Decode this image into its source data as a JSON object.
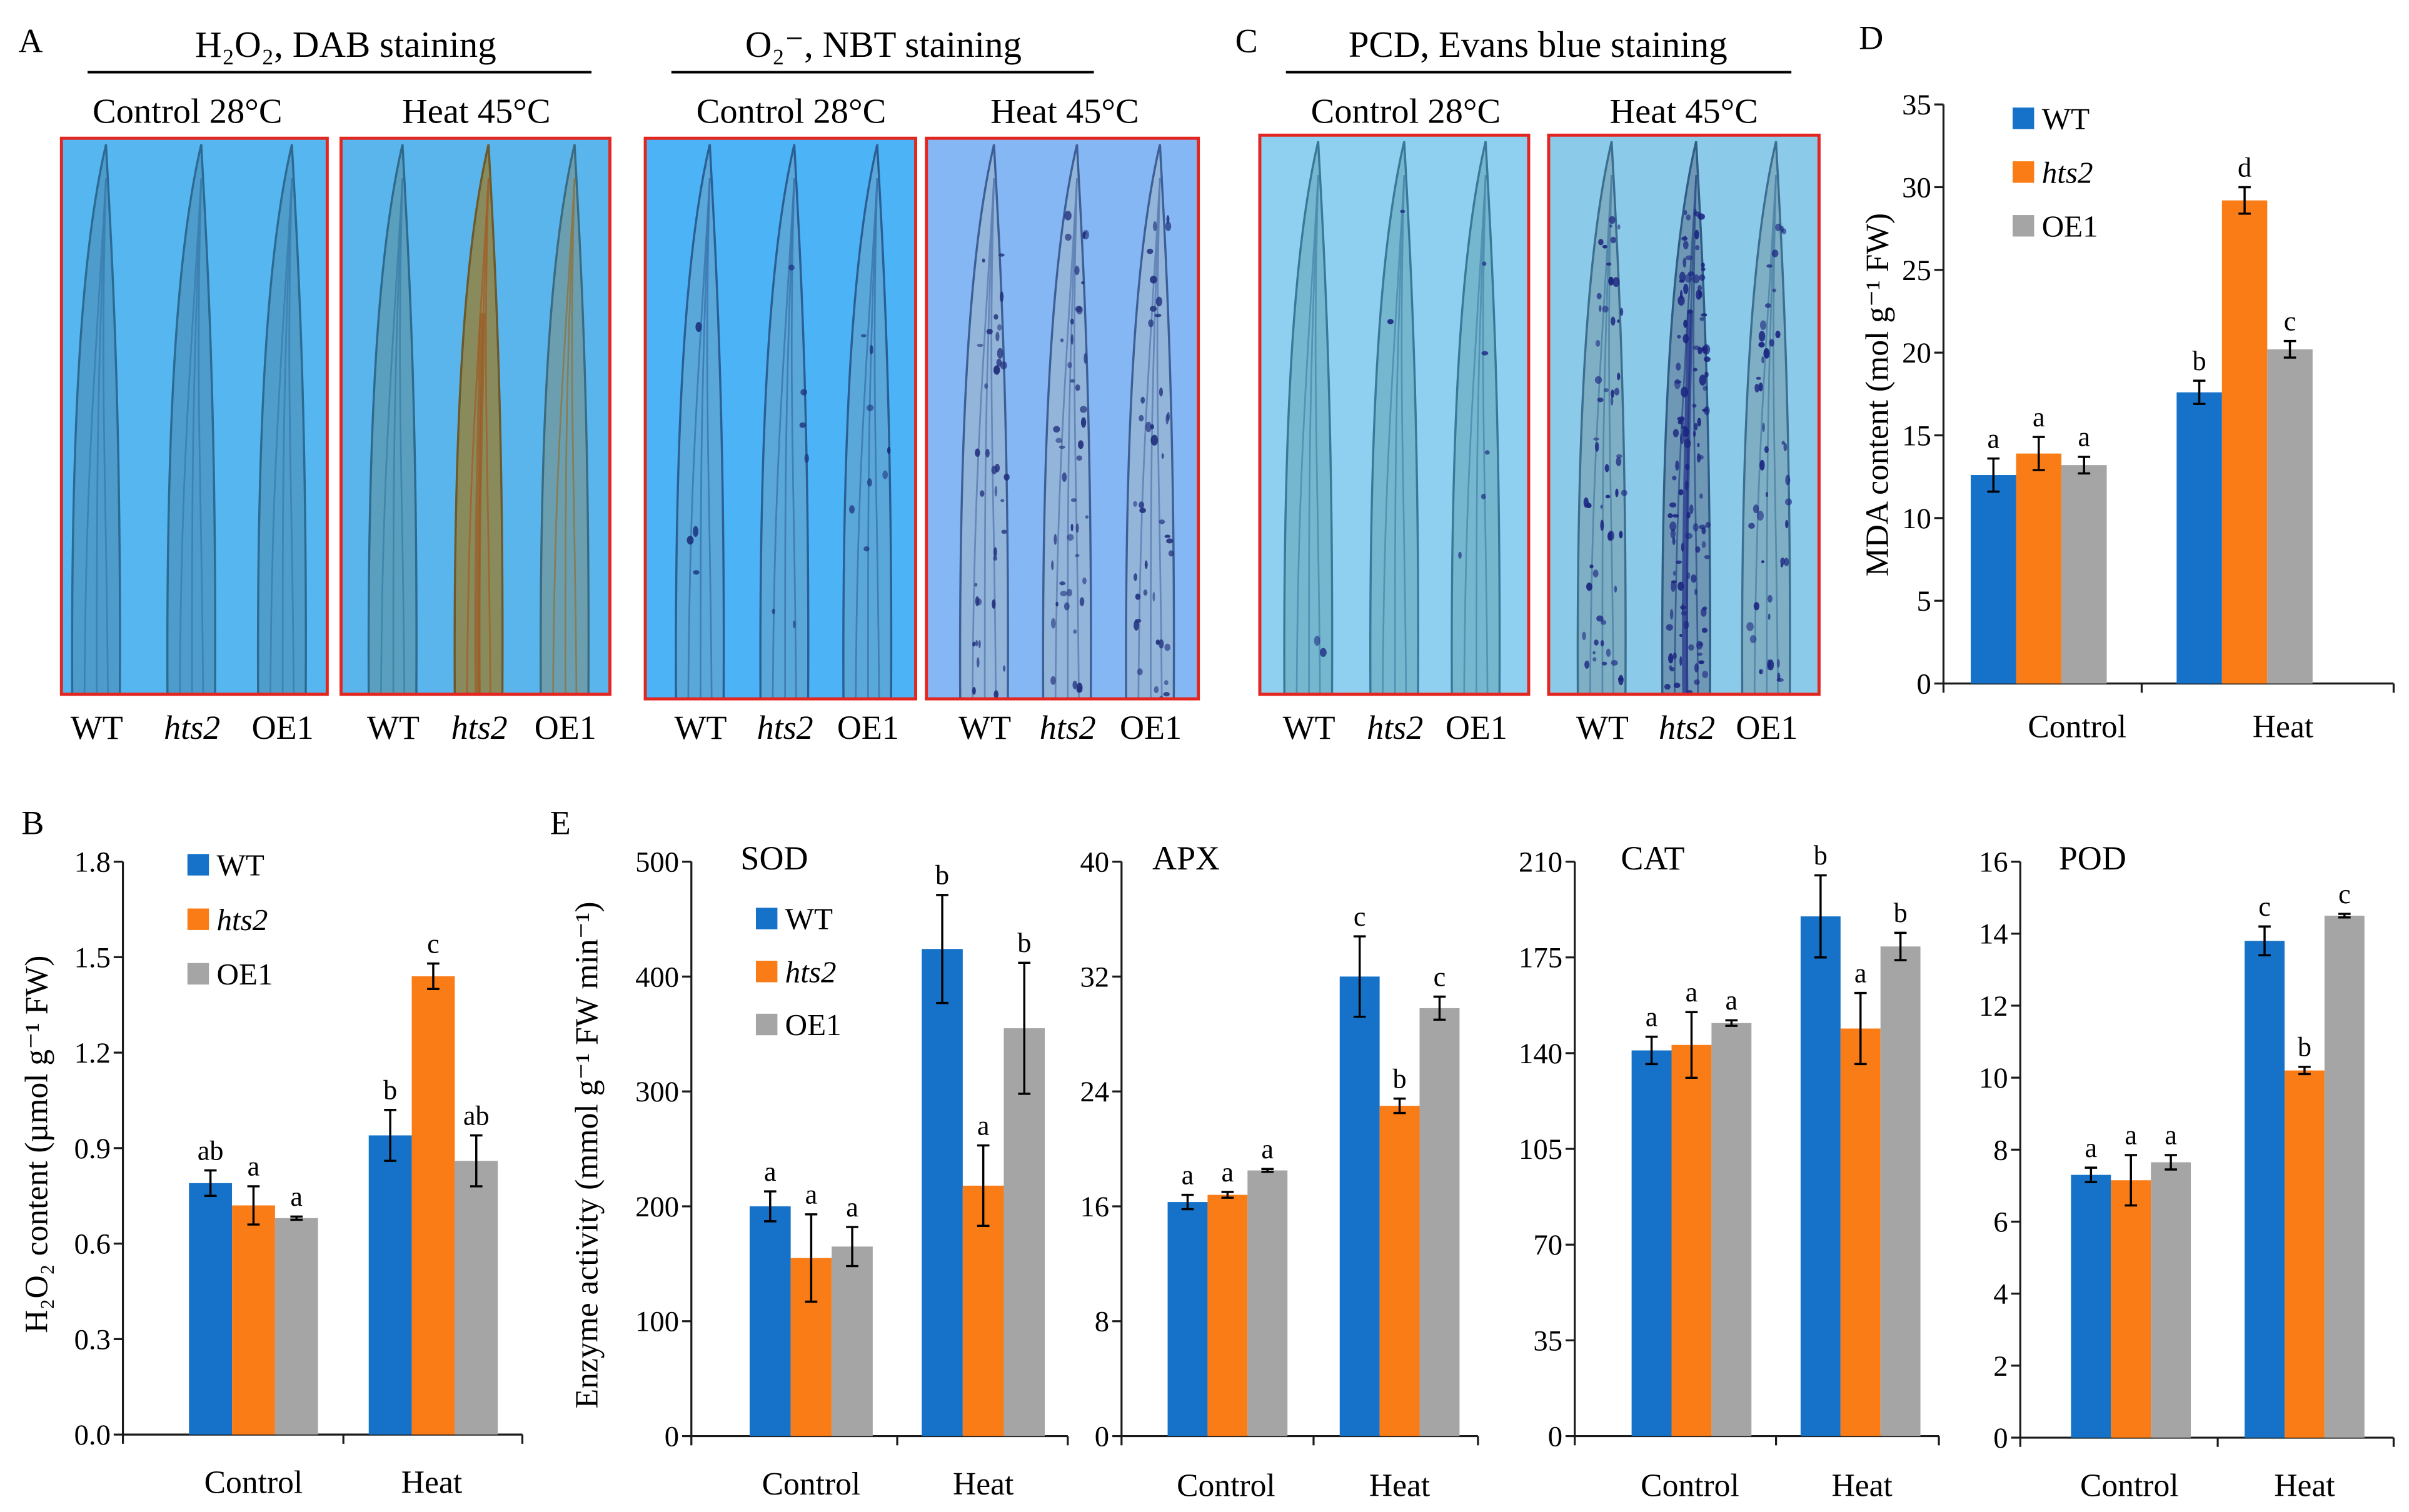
{
  "figure": {
    "panel_labels": {
      "A": "A",
      "B": "B",
      "C": "C",
      "D": "D",
      "E": "E"
    },
    "photo_panels": [
      {
        "title": "H₂O₂, DAB staining",
        "conditions": [
          "Control 28°C",
          "Heat 45°C"
        ],
        "genotypes": [
          "WT",
          "hts2",
          "OE1"
        ]
      },
      {
        "title": "O₂⁻, NBT staining",
        "conditions": [
          "Control 28°C",
          "Heat 45°C"
        ],
        "genotypes": [
          "WT",
          "hts2",
          "OE1"
        ]
      },
      {
        "title": "PCD, Evans blue staining",
        "conditions": [
          "Control 28°C",
          "Heat 45°C"
        ],
        "genotypes": [
          "WT",
          "hts2",
          "OE1"
        ]
      }
    ],
    "panel_E_ylabel": "Enzyme activity (mmol g⁻¹ FW min⁻¹)"
  },
  "colors": {
    "WT": "#1572c8",
    "hts2": "#f97c16",
    "OE1": "#a5a5a5",
    "photo_border": "#e32620"
  },
  "chart_data": [
    {
      "id": "B",
      "type": "bar",
      "ylabel": "H₂O₂ content (µmol g⁻¹ FW)",
      "categories": [
        "Control",
        "Heat"
      ],
      "ylim": [
        0,
        1.8
      ],
      "yticks": [
        0,
        0.3,
        0.6,
        0.9,
        1.2,
        1.5,
        1.8
      ],
      "ytick_labels": [
        "0.0",
        "0.3",
        "0.6",
        "0.9",
        "1.2",
        "1.5",
        "1.8"
      ],
      "legend": "top-left",
      "series": [
        {
          "name": "WT",
          "values": [
            0.79,
            0.94
          ],
          "errors": [
            0.04,
            0.08
          ],
          "letters": [
            "ab",
            "b"
          ]
        },
        {
          "name": "hts2",
          "values": [
            0.72,
            1.44
          ],
          "errors": [
            0.06,
            0.04
          ],
          "letters": [
            "a",
            "c"
          ]
        },
        {
          "name": "OE1",
          "values": [
            0.68,
            0.86
          ],
          "errors": [
            0.005,
            0.08
          ],
          "letters": [
            "a",
            "ab"
          ]
        }
      ]
    },
    {
      "id": "D",
      "type": "bar",
      "ylabel": "MDA content (mol g⁻¹ FW)",
      "categories": [
        "Control",
        "Heat"
      ],
      "ylim": [
        0,
        35
      ],
      "yticks": [
        0,
        5,
        10,
        15,
        20,
        25,
        30,
        35
      ],
      "ytick_labels": [
        "0",
        "5",
        "10",
        "15",
        "20",
        "25",
        "30",
        "35"
      ],
      "legend": "top-left",
      "series": [
        {
          "name": "WT",
          "values": [
            12.6,
            17.6
          ],
          "errors": [
            1.0,
            0.7
          ],
          "letters": [
            "a",
            "b"
          ]
        },
        {
          "name": "hts2",
          "values": [
            13.9,
            29.2
          ],
          "errors": [
            1.0,
            0.8
          ],
          "letters": [
            "a",
            "d"
          ]
        },
        {
          "name": "OE1",
          "values": [
            13.2,
            20.2
          ],
          "errors": [
            0.5,
            0.5
          ],
          "letters": [
            "a",
            "c"
          ]
        }
      ]
    },
    {
      "id": "SOD",
      "type": "bar",
      "title": "SOD",
      "categories": [
        "Control",
        "Heat"
      ],
      "ylim": [
        0,
        500
      ],
      "yticks": [
        0,
        100,
        200,
        300,
        400,
        500
      ],
      "ytick_labels": [
        "0",
        "100",
        "200",
        "300",
        "400",
        "500"
      ],
      "legend": "top-left",
      "series": [
        {
          "name": "WT",
          "values": [
            200,
            424
          ],
          "errors": [
            13,
            47
          ],
          "letters": [
            "a",
            "b"
          ]
        },
        {
          "name": "hts2",
          "values": [
            155,
            218
          ],
          "errors": [
            38,
            35
          ],
          "letters": [
            "a",
            "a"
          ]
        },
        {
          "name": "OE1",
          "values": [
            165,
            355
          ],
          "errors": [
            17,
            57
          ],
          "letters": [
            "a",
            "b"
          ]
        }
      ]
    },
    {
      "id": "APX",
      "type": "bar",
      "title": "APX",
      "categories": [
        "Control",
        "Heat"
      ],
      "ylim": [
        0,
        40
      ],
      "yticks": [
        0,
        8,
        16,
        24,
        32,
        40
      ],
      "ytick_labels": [
        "0",
        "8",
        "16",
        "24",
        "32",
        "40"
      ],
      "legend": null,
      "series": [
        {
          "name": "WT",
          "values": [
            16.3,
            32.0
          ],
          "errors": [
            0.5,
            2.8
          ],
          "letters": [
            "a",
            "c"
          ]
        },
        {
          "name": "hts2",
          "values": [
            16.8,
            23.0
          ],
          "errors": [
            0.2,
            0.5
          ],
          "letters": [
            "a",
            "b"
          ]
        },
        {
          "name": "OE1",
          "values": [
            18.5,
            29.8
          ],
          "errors": [
            0.1,
            0.8
          ],
          "letters": [
            "a",
            "c"
          ]
        }
      ]
    },
    {
      "id": "CAT",
      "type": "bar",
      "title": "CAT",
      "categories": [
        "Control",
        "Heat"
      ],
      "ylim": [
        0,
        210
      ],
      "yticks": [
        0,
        35,
        70,
        105,
        140,
        175,
        210
      ],
      "ytick_labels": [
        "0",
        "35",
        "70",
        "105",
        "140",
        "175",
        "210"
      ],
      "legend": null,
      "series": [
        {
          "name": "WT",
          "values": [
            141,
            190
          ],
          "errors": [
            5,
            15
          ],
          "letters": [
            "a",
            "b"
          ]
        },
        {
          "name": "hts2",
          "values": [
            143,
            149
          ],
          "errors": [
            12,
            13
          ],
          "letters": [
            "a",
            "a"
          ]
        },
        {
          "name": "OE1",
          "values": [
            151,
            179
          ],
          "errors": [
            1,
            5
          ],
          "letters": [
            "a",
            "b"
          ]
        }
      ]
    },
    {
      "id": "POD",
      "type": "bar",
      "title": "POD",
      "categories": [
        "Control",
        "Heat"
      ],
      "ylim": [
        0,
        16
      ],
      "yticks": [
        0,
        2,
        4,
        6,
        8,
        10,
        12,
        14,
        16
      ],
      "ytick_labels": [
        "0",
        "2",
        "4",
        "6",
        "8",
        "10",
        "12",
        "14",
        "16"
      ],
      "legend": null,
      "series": [
        {
          "name": "WT",
          "values": [
            7.3,
            13.8
          ],
          "errors": [
            0.2,
            0.4
          ],
          "letters": [
            "a",
            "c"
          ]
        },
        {
          "name": "hts2",
          "values": [
            7.15,
            10.2
          ],
          "errors": [
            0.7,
            0.1
          ],
          "letters": [
            "a",
            "b"
          ]
        },
        {
          "name": "OE1",
          "values": [
            7.65,
            14.5
          ],
          "errors": [
            0.2,
            0.05
          ],
          "letters": [
            "a",
            "c"
          ]
        }
      ]
    }
  ]
}
